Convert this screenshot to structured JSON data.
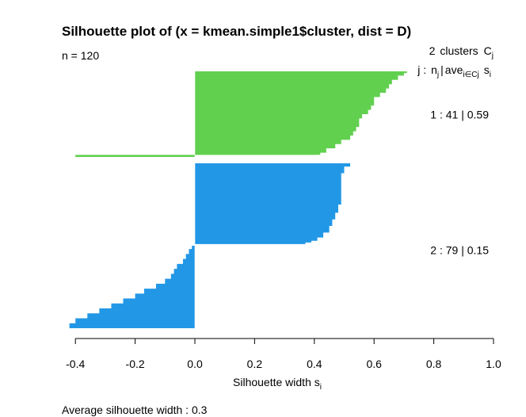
{
  "chart_data": {
    "type": "bar",
    "orientation": "horizontal",
    "title": "Silhouette plot of (x = kmean.simple1$cluster, dist = D)",
    "subtitle": "n = 120",
    "header": {
      "n_clusters": "2",
      "clusters_word": "clusters",
      "clusters_symbol": "C",
      "clusters_symbol_sub": "j",
      "legend_j": "j :",
      "legend_n": "n",
      "legend_n_sub": "j",
      "legend_sep": "|",
      "legend_ave": "ave",
      "legend_ave_sub": "i∈Cj",
      "legend_s": "s",
      "legend_s_sub": "i"
    },
    "xlabel": "Silhouette width s",
    "xlabel_sub": "i",
    "xlim": [
      -0.45,
      1.0
    ],
    "xticks": [
      "-0.4",
      "-0.2",
      "0.0",
      "0.2",
      "0.4",
      "0.6",
      "0.8",
      "1.0"
    ],
    "xtick_values": [
      -0.4,
      -0.2,
      0.0,
      0.2,
      0.4,
      0.6,
      0.8,
      1.0
    ],
    "footer": "Average silhouette width :  0.3",
    "average_silhouette_width": 0.3,
    "clusters": [
      {
        "id": 1,
        "label": "1 :",
        "size": "41",
        "avg": "0.59",
        "color": "#61D04F",
        "profile": [
          [
            0,
            0.71
          ],
          [
            0.02,
            0.7
          ],
          [
            0.05,
            0.68
          ],
          [
            0.1,
            0.66
          ],
          [
            0.15,
            0.65
          ],
          [
            0.2,
            0.64
          ],
          [
            0.25,
            0.62
          ],
          [
            0.3,
            0.6
          ],
          [
            0.35,
            0.6
          ],
          [
            0.4,
            0.59
          ],
          [
            0.45,
            0.58
          ],
          [
            0.5,
            0.56
          ],
          [
            0.55,
            0.55
          ],
          [
            0.6,
            0.55
          ],
          [
            0.65,
            0.54
          ],
          [
            0.7,
            0.53
          ],
          [
            0.75,
            0.52
          ],
          [
            0.8,
            0.49
          ],
          [
            0.85,
            0.47
          ],
          [
            0.9,
            0.44
          ],
          [
            0.95,
            0.42
          ],
          [
            0.975,
            0.41
          ],
          [
            0.976,
            -0.4
          ],
          [
            1.0,
            -0.4
          ]
        ]
      },
      {
        "id": 2,
        "label": "2 :",
        "size": "79",
        "avg": "0.15",
        "color": "#2297E6",
        "profile": [
          [
            0,
            0.52
          ],
          [
            0.02,
            0.5
          ],
          [
            0.06,
            0.49
          ],
          [
            0.15,
            0.49
          ],
          [
            0.25,
            0.48
          ],
          [
            0.3,
            0.47
          ],
          [
            0.34,
            0.46
          ],
          [
            0.38,
            0.45
          ],
          [
            0.42,
            0.43
          ],
          [
            0.45,
            0.41
          ],
          [
            0.47,
            0.39
          ],
          [
            0.48,
            0.37
          ],
          [
            0.49,
            0.0
          ],
          [
            0.5,
            -0.01
          ],
          [
            0.52,
            -0.02
          ],
          [
            0.55,
            -0.03
          ],
          [
            0.58,
            -0.04
          ],
          [
            0.61,
            -0.06
          ],
          [
            0.64,
            -0.07
          ],
          [
            0.67,
            -0.08
          ],
          [
            0.7,
            -0.1
          ],
          [
            0.73,
            -0.13
          ],
          [
            0.76,
            -0.17
          ],
          [
            0.79,
            -0.2
          ],
          [
            0.82,
            -0.24
          ],
          [
            0.85,
            -0.28
          ],
          [
            0.88,
            -0.32
          ],
          [
            0.91,
            -0.36
          ],
          [
            0.94,
            -0.4
          ],
          [
            0.97,
            -0.42
          ],
          [
            1.0,
            -0.45
          ]
        ]
      }
    ],
    "axis_visible": [
      "x"
    ],
    "grid": false
  }
}
